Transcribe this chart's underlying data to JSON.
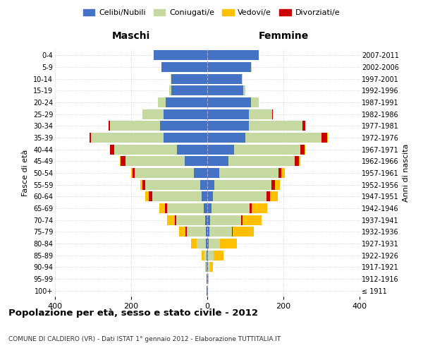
{
  "age_groups": [
    "100+",
    "95-99",
    "90-94",
    "85-89",
    "80-84",
    "75-79",
    "70-74",
    "65-69",
    "60-64",
    "55-59",
    "50-54",
    "45-49",
    "40-44",
    "35-39",
    "30-34",
    "25-29",
    "20-24",
    "15-19",
    "10-14",
    "5-9",
    "0-4"
  ],
  "birth_years": [
    "≤ 1911",
    "1912-1916",
    "1917-1921",
    "1922-1926",
    "1927-1931",
    "1932-1936",
    "1937-1941",
    "1942-1946",
    "1947-1951",
    "1952-1956",
    "1957-1961",
    "1962-1966",
    "1967-1971",
    "1972-1976",
    "1977-1981",
    "1982-1986",
    "1987-1991",
    "1992-1996",
    "1997-2001",
    "2002-2006",
    "2007-2011"
  ],
  "colors": {
    "celibi": "#4472c4",
    "coniugati": "#c5d9a0",
    "vedovi": "#ffc000",
    "divorziati": "#cc0000"
  },
  "males": {
    "celibi": [
      1,
      1,
      1,
      1,
      3,
      4,
      6,
      10,
      15,
      18,
      35,
      60,
      80,
      115,
      125,
      115,
      110,
      95,
      95,
      120,
      140
    ],
    "coniugati": [
      0,
      1,
      3,
      8,
      25,
      50,
      75,
      95,
      130,
      145,
      155,
      155,
      165,
      190,
      130,
      55,
      20,
      5,
      2,
      1,
      0
    ],
    "vedovi": [
      0,
      0,
      1,
      5,
      15,
      18,
      20,
      15,
      10,
      5,
      3,
      2,
      1,
      0,
      0,
      0,
      0,
      0,
      0,
      0,
      0
    ],
    "divorziati": [
      0,
      0,
      0,
      0,
      0,
      3,
      5,
      6,
      8,
      8,
      7,
      12,
      10,
      5,
      4,
      0,
      0,
      0,
      0,
      0,
      0
    ]
  },
  "females": {
    "nubili": [
      1,
      1,
      2,
      2,
      3,
      5,
      8,
      12,
      15,
      18,
      32,
      55,
      70,
      100,
      110,
      110,
      115,
      95,
      90,
      115,
      135
    ],
    "coniugate": [
      0,
      1,
      5,
      15,
      30,
      60,
      80,
      100,
      140,
      150,
      155,
      175,
      175,
      200,
      140,
      60,
      20,
      5,
      2,
      1,
      0
    ],
    "vedove": [
      0,
      2,
      8,
      25,
      45,
      55,
      50,
      40,
      20,
      12,
      8,
      4,
      2,
      1,
      0,
      0,
      0,
      0,
      0,
      0,
      0
    ],
    "divorziate": [
      0,
      0,
      0,
      0,
      0,
      2,
      4,
      5,
      10,
      10,
      8,
      10,
      10,
      15,
      8,
      2,
      0,
      0,
      0,
      0,
      0
    ]
  },
  "xlim": 400,
  "title": "Popolazione per età, sesso e stato civile - 2012",
  "subtitle": "COMUNE DI CALDIERO (VR) - Dati ISTAT 1° gennaio 2012 - Elaborazione TUTTITALIA.IT",
  "ylabel_left": "Fasce di età",
  "ylabel_right": "Anni di nascita",
  "legend_labels": [
    "Celibi/Nubili",
    "Coniugati/e",
    "Vedovi/e",
    "Divorziati/e"
  ],
  "maschi_label": "Maschi",
  "femmine_label": "Femmine",
  "bg_color": "#ffffff"
}
